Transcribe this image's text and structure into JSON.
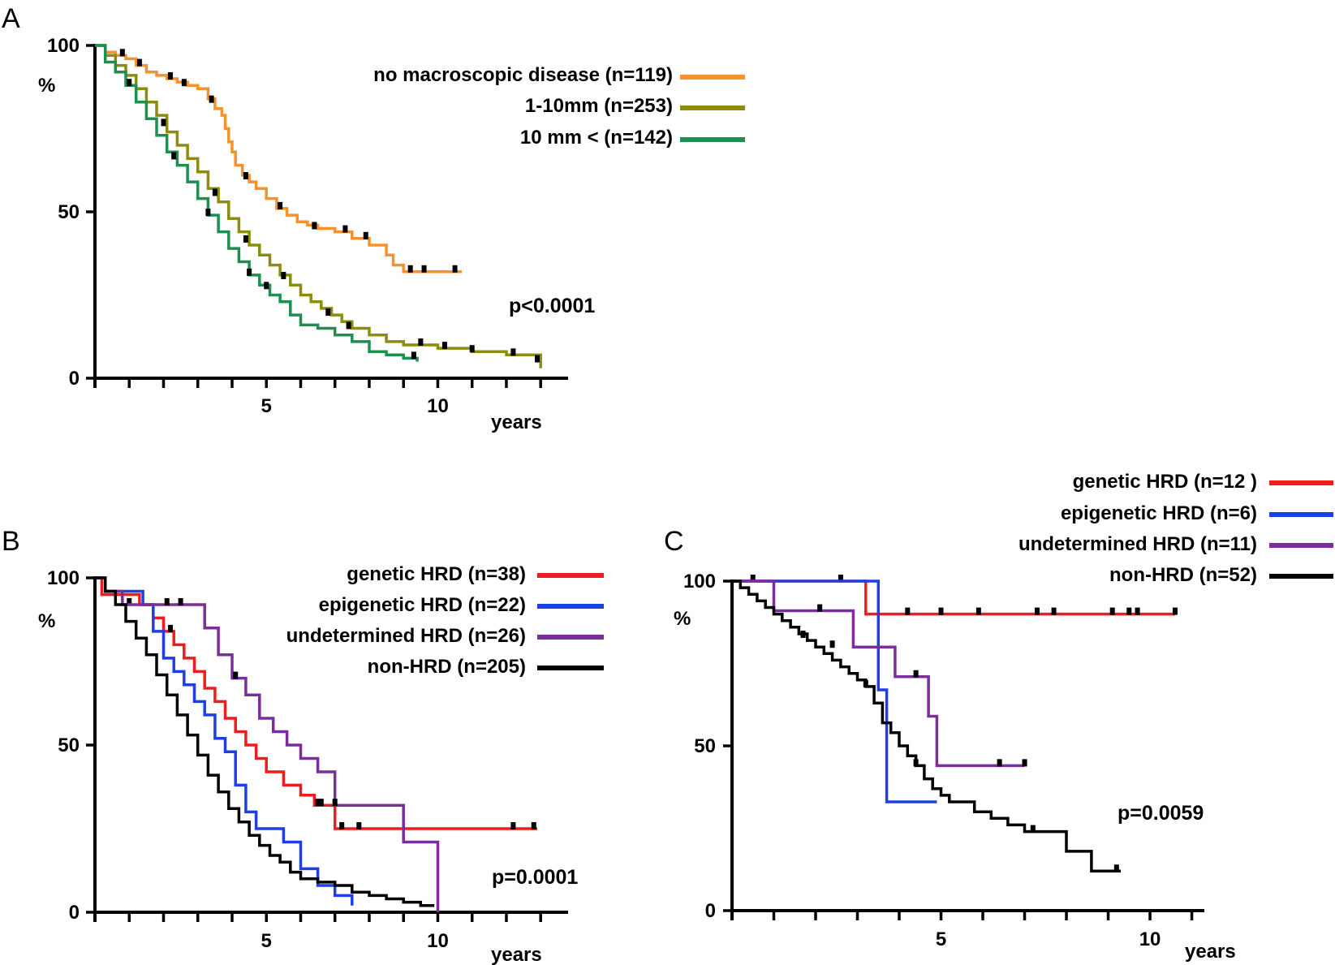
{
  "chart_data": [
    {
      "panel": "A",
      "type": "line",
      "subtype": "kaplan-meier",
      "ylabel": "%",
      "xlabel": "years",
      "xlim": [
        0,
        13.8
      ],
      "ylim": [
        0,
        100
      ],
      "yticks": [
        0,
        50,
        100
      ],
      "xtick_labels": [
        5,
        10
      ],
      "minor_xticks": [
        1,
        2,
        3,
        4,
        5,
        6,
        7,
        8,
        9,
        10,
        11,
        12,
        13
      ],
      "pvalue": "p<0.0001",
      "censor_color": "#000000",
      "series": [
        {
          "name": "no macroscopic disease (n=119)",
          "color": "#f5922d",
          "x": [
            0,
            0.3,
            0.6,
            0.9,
            1.2,
            1.5,
            1.8,
            2.1,
            2.4,
            2.7,
            3.0,
            3.3,
            3.5,
            3.7,
            3.8,
            3.9,
            4.0,
            4.1,
            4.3,
            4.5,
            4.7,
            5.0,
            5.3,
            5.6,
            5.9,
            6.2,
            6.5,
            7.0,
            7.5,
            8.0,
            8.5,
            8.7,
            9.0,
            9.5,
            10.0,
            10.7
          ],
          "y": [
            100,
            98,
            97,
            96,
            94,
            92,
            91,
            90,
            89,
            88,
            87,
            84,
            81,
            79,
            75,
            71,
            68,
            64,
            61,
            59,
            57,
            54,
            51,
            49,
            47,
            46,
            45,
            44,
            42,
            40,
            37,
            34,
            32,
            32,
            32,
            32
          ],
          "censored": [
            [
              0.8,
              97
            ],
            [
              1.3,
              94
            ],
            [
              2.2,
              90
            ],
            [
              2.6,
              88
            ],
            [
              3.4,
              83
            ],
            [
              4.4,
              60
            ],
            [
              5.4,
              51
            ],
            [
              6.4,
              45
            ],
            [
              7.3,
              44
            ],
            [
              7.9,
              42
            ],
            [
              9.2,
              32
            ],
            [
              9.6,
              32
            ],
            [
              10.5,
              32
            ]
          ]
        },
        {
          "name": "1-10mm (n=253)",
          "color": "#8c8c0f",
          "x": [
            0,
            0.3,
            0.6,
            0.9,
            1.2,
            1.5,
            1.8,
            2.1,
            2.4,
            2.7,
            3.0,
            3.3,
            3.6,
            3.9,
            4.2,
            4.5,
            4.8,
            5.1,
            5.4,
            5.7,
            6.0,
            6.3,
            6.6,
            6.9,
            7.2,
            7.5,
            8.0,
            8.5,
            9.0,
            9.5,
            10.0,
            11.0,
            12.0,
            12.8,
            13.0
          ],
          "y": [
            100,
            97,
            94,
            91,
            87,
            83,
            79,
            74,
            70,
            66,
            62,
            57,
            53,
            48,
            44,
            40,
            37,
            34,
            31,
            28,
            25,
            23,
            21,
            19,
            17,
            15,
            13,
            11,
            10,
            10,
            9,
            8,
            7,
            7,
            3
          ],
          "censored": [
            [
              2.0,
              76
            ],
            [
              3.5,
              55
            ],
            [
              4.4,
              41
            ],
            [
              5.5,
              30
            ],
            [
              6.8,
              19
            ],
            [
              7.4,
              15
            ],
            [
              9.5,
              10
            ],
            [
              10.2,
              9
            ],
            [
              11.0,
              8
            ],
            [
              12.2,
              7
            ],
            [
              12.9,
              5
            ]
          ]
        },
        {
          "name": "10 mm < (n=142)",
          "color": "#1d8f4f",
          "x": [
            0,
            0.3,
            0.6,
            0.9,
            1.2,
            1.5,
            1.8,
            2.1,
            2.4,
            2.7,
            3.0,
            3.3,
            3.6,
            3.9,
            4.2,
            4.5,
            4.8,
            5.1,
            5.4,
            5.7,
            6.0,
            6.5,
            7.0,
            7.5,
            8.0,
            8.5,
            9.0,
            9.4
          ],
          "y": [
            100,
            95,
            92,
            88,
            83,
            78,
            73,
            68,
            64,
            59,
            54,
            49,
            44,
            39,
            35,
            31,
            28,
            25,
            23,
            19,
            16,
            15,
            13,
            11,
            8,
            7,
            6,
            5
          ],
          "censored": [
            [
              1.0,
              88
            ],
            [
              2.3,
              66
            ],
            [
              3.3,
              49
            ],
            [
              4.5,
              31
            ],
            [
              5.0,
              27
            ],
            [
              9.3,
              6
            ]
          ]
        }
      ]
    },
    {
      "panel": "B",
      "type": "line",
      "subtype": "kaplan-meier",
      "ylabel": "%",
      "xlabel": "years",
      "xlim": [
        0,
        13.8
      ],
      "ylim": [
        0,
        100
      ],
      "yticks": [
        0,
        50,
        100
      ],
      "xtick_labels": [
        5,
        10
      ],
      "minor_xticks": [
        1,
        2,
        3,
        4,
        5,
        6,
        7,
        8,
        9,
        10,
        11,
        12,
        13
      ],
      "pvalue": "p=0.0001",
      "censor_color": "#000000",
      "series": [
        {
          "name": "genetic HRD (n=38)",
          "color": "#ee1c1c",
          "x": [
            0,
            0.2,
            1.3,
            1.7,
            2.0,
            2.3,
            2.6,
            2.9,
            3.2,
            3.5,
            3.8,
            4.1,
            4.4,
            4.7,
            5.0,
            5.5,
            6.0,
            6.4,
            7.0,
            8.0,
            9.0,
            10.0,
            11.0,
            12.0,
            12.9
          ],
          "y": [
            100,
            95,
            92,
            88,
            84,
            80,
            76,
            72,
            67,
            63,
            58,
            54,
            50,
            46,
            42,
            38,
            35,
            32,
            25,
            25,
            25,
            25,
            25,
            25,
            25
          ],
          "censored": [
            [
              1.0,
              92
            ],
            [
              2.2,
              84
            ],
            [
              6.5,
              32
            ],
            [
              7.2,
              25
            ],
            [
              7.7,
              25
            ],
            [
              12.2,
              25
            ],
            [
              12.8,
              25
            ]
          ]
        },
        {
          "name": "epigenetic HRD (n=22)",
          "color": "#1f3fe6",
          "x": [
            0,
            0.3,
            0.8,
            1.1,
            1.4,
            1.7,
            2.0,
            2.3,
            2.6,
            2.9,
            3.2,
            3.5,
            3.8,
            4.1,
            4.4,
            4.7,
            5.0,
            5.5,
            6.0,
            6.5,
            7.0,
            7.5
          ],
          "y": [
            100,
            96,
            96,
            96,
            92,
            84,
            76,
            72,
            68,
            63,
            59,
            52,
            48,
            38,
            30,
            25,
            25,
            21,
            13,
            8,
            5,
            2
          ],
          "censored": []
        },
        {
          "name": "undetermined HRD (n=26)",
          "color": "#7b2d9c",
          "x": [
            0,
            0.3,
            0.8,
            1.2,
            1.6,
            2.0,
            2.4,
            2.8,
            3.2,
            3.6,
            4.0,
            4.4,
            4.8,
            5.2,
            5.6,
            6.0,
            6.5,
            7.0,
            7.5,
            8.0,
            8.5,
            9.0,
            9.5,
            9.95,
            10.0
          ],
          "y": [
            100,
            96,
            92,
            92,
            92,
            92,
            92,
            92,
            85,
            77,
            70,
            65,
            58,
            54,
            50,
            46,
            42,
            32,
            32,
            32,
            32,
            21,
            21,
            21,
            0
          ],
          "censored": [
            [
              2.1,
              92
            ],
            [
              2.5,
              92
            ],
            [
              4.1,
              70
            ],
            [
              6.6,
              32
            ],
            [
              7.0,
              32
            ]
          ]
        },
        {
          "name": "non-HRD (n=205)",
          "color": "#000000",
          "x": [
            0,
            0.3,
            0.6,
            0.9,
            1.2,
            1.5,
            1.8,
            2.1,
            2.4,
            2.7,
            3.0,
            3.3,
            3.6,
            3.9,
            4.2,
            4.5,
            4.8,
            5.1,
            5.4,
            5.7,
            6.0,
            6.5,
            7.0,
            7.5,
            8.0,
            8.5,
            9.0,
            9.5,
            9.9
          ],
          "y": [
            100,
            96,
            92,
            87,
            82,
            77,
            71,
            65,
            59,
            53,
            47,
            41,
            36,
            31,
            27,
            23,
            20,
            17,
            15,
            12,
            10,
            9,
            8,
            6,
            5,
            4,
            3,
            2,
            2
          ],
          "censored": []
        }
      ]
    },
    {
      "panel": "C",
      "type": "line",
      "subtype": "kaplan-meier",
      "ylabel": "%",
      "xlabel": "years",
      "xlim": [
        0,
        11.3
      ],
      "ylim": [
        0,
        100
      ],
      "yticks": [
        0,
        50,
        100
      ],
      "xtick_labels": [
        5,
        10
      ],
      "minor_xticks": [
        1,
        2,
        3,
        4,
        5,
        6,
        7,
        8,
        9,
        10,
        11
      ],
      "pvalue": "p=0.0059",
      "censor_color": "#000000",
      "series": [
        {
          "name": "genetic HRD (n=12 )",
          "color": "#ee1c1c",
          "x": [
            0,
            3.2,
            3.2,
            10.6
          ],
          "y": [
            100,
            100,
            90,
            90
          ],
          "censored": [
            [
              0.5,
              100
            ],
            [
              2.6,
              100
            ],
            [
              4.2,
              90
            ],
            [
              5.0,
              90
            ],
            [
              5.9,
              90
            ],
            [
              7.3,
              90
            ],
            [
              7.7,
              90
            ],
            [
              9.1,
              90
            ],
            [
              9.5,
              90
            ],
            [
              9.7,
              90
            ],
            [
              10.6,
              90
            ]
          ]
        },
        {
          "name": "epigenetic HRD (n=6)",
          "color": "#1f3fe6",
          "x": [
            0,
            3.5,
            3.5,
            3.7,
            3.7,
            4.9
          ],
          "y": [
            100,
            100,
            67,
            67,
            33,
            33
          ],
          "censored": []
        },
        {
          "name": "undetermined HRD (n=11)",
          "color": "#7b2d9c",
          "x": [
            0,
            1.0,
            1.0,
            2.9,
            2.9,
            3.9,
            3.9,
            4.7,
            4.7,
            4.9,
            4.9,
            7.0
          ],
          "y": [
            100,
            100,
            91,
            91,
            80,
            80,
            71,
            71,
            59,
            59,
            44,
            44
          ],
          "censored": [
            [
              2.1,
              91
            ],
            [
              4.4,
              71
            ],
            [
              6.4,
              44
            ],
            [
              7.0,
              44
            ]
          ]
        },
        {
          "name": "non-HRD (n=52)",
          "color": "#000000",
          "x": [
            0,
            0.2,
            0.4,
            0.6,
            0.8,
            1.0,
            1.2,
            1.4,
            1.6,
            1.8,
            2.0,
            2.2,
            2.4,
            2.6,
            2.8,
            3.0,
            3.2,
            3.4,
            3.6,
            3.8,
            4.0,
            4.2,
            4.4,
            4.6,
            4.8,
            5.0,
            5.2,
            5.4,
            5.8,
            6.2,
            6.6,
            7.0,
            7.6,
            8.0,
            8.6,
            9.0,
            9.3
          ],
          "y": [
            100,
            98,
            96,
            94,
            92,
            90,
            88,
            86,
            84,
            82,
            80,
            78,
            76,
            74,
            72,
            70,
            68,
            63,
            57,
            54,
            50,
            47,
            44,
            40,
            37,
            35,
            33,
            33,
            30,
            28,
            26,
            24,
            24,
            18,
            12,
            12,
            12
          ],
          "censored": [
            [
              1.7,
              83
            ],
            [
              2.4,
              80
            ],
            [
              3.2,
              68
            ],
            [
              4.4,
              44
            ],
            [
              7.2,
              24
            ],
            [
              9.2,
              12
            ]
          ]
        }
      ]
    }
  ]
}
